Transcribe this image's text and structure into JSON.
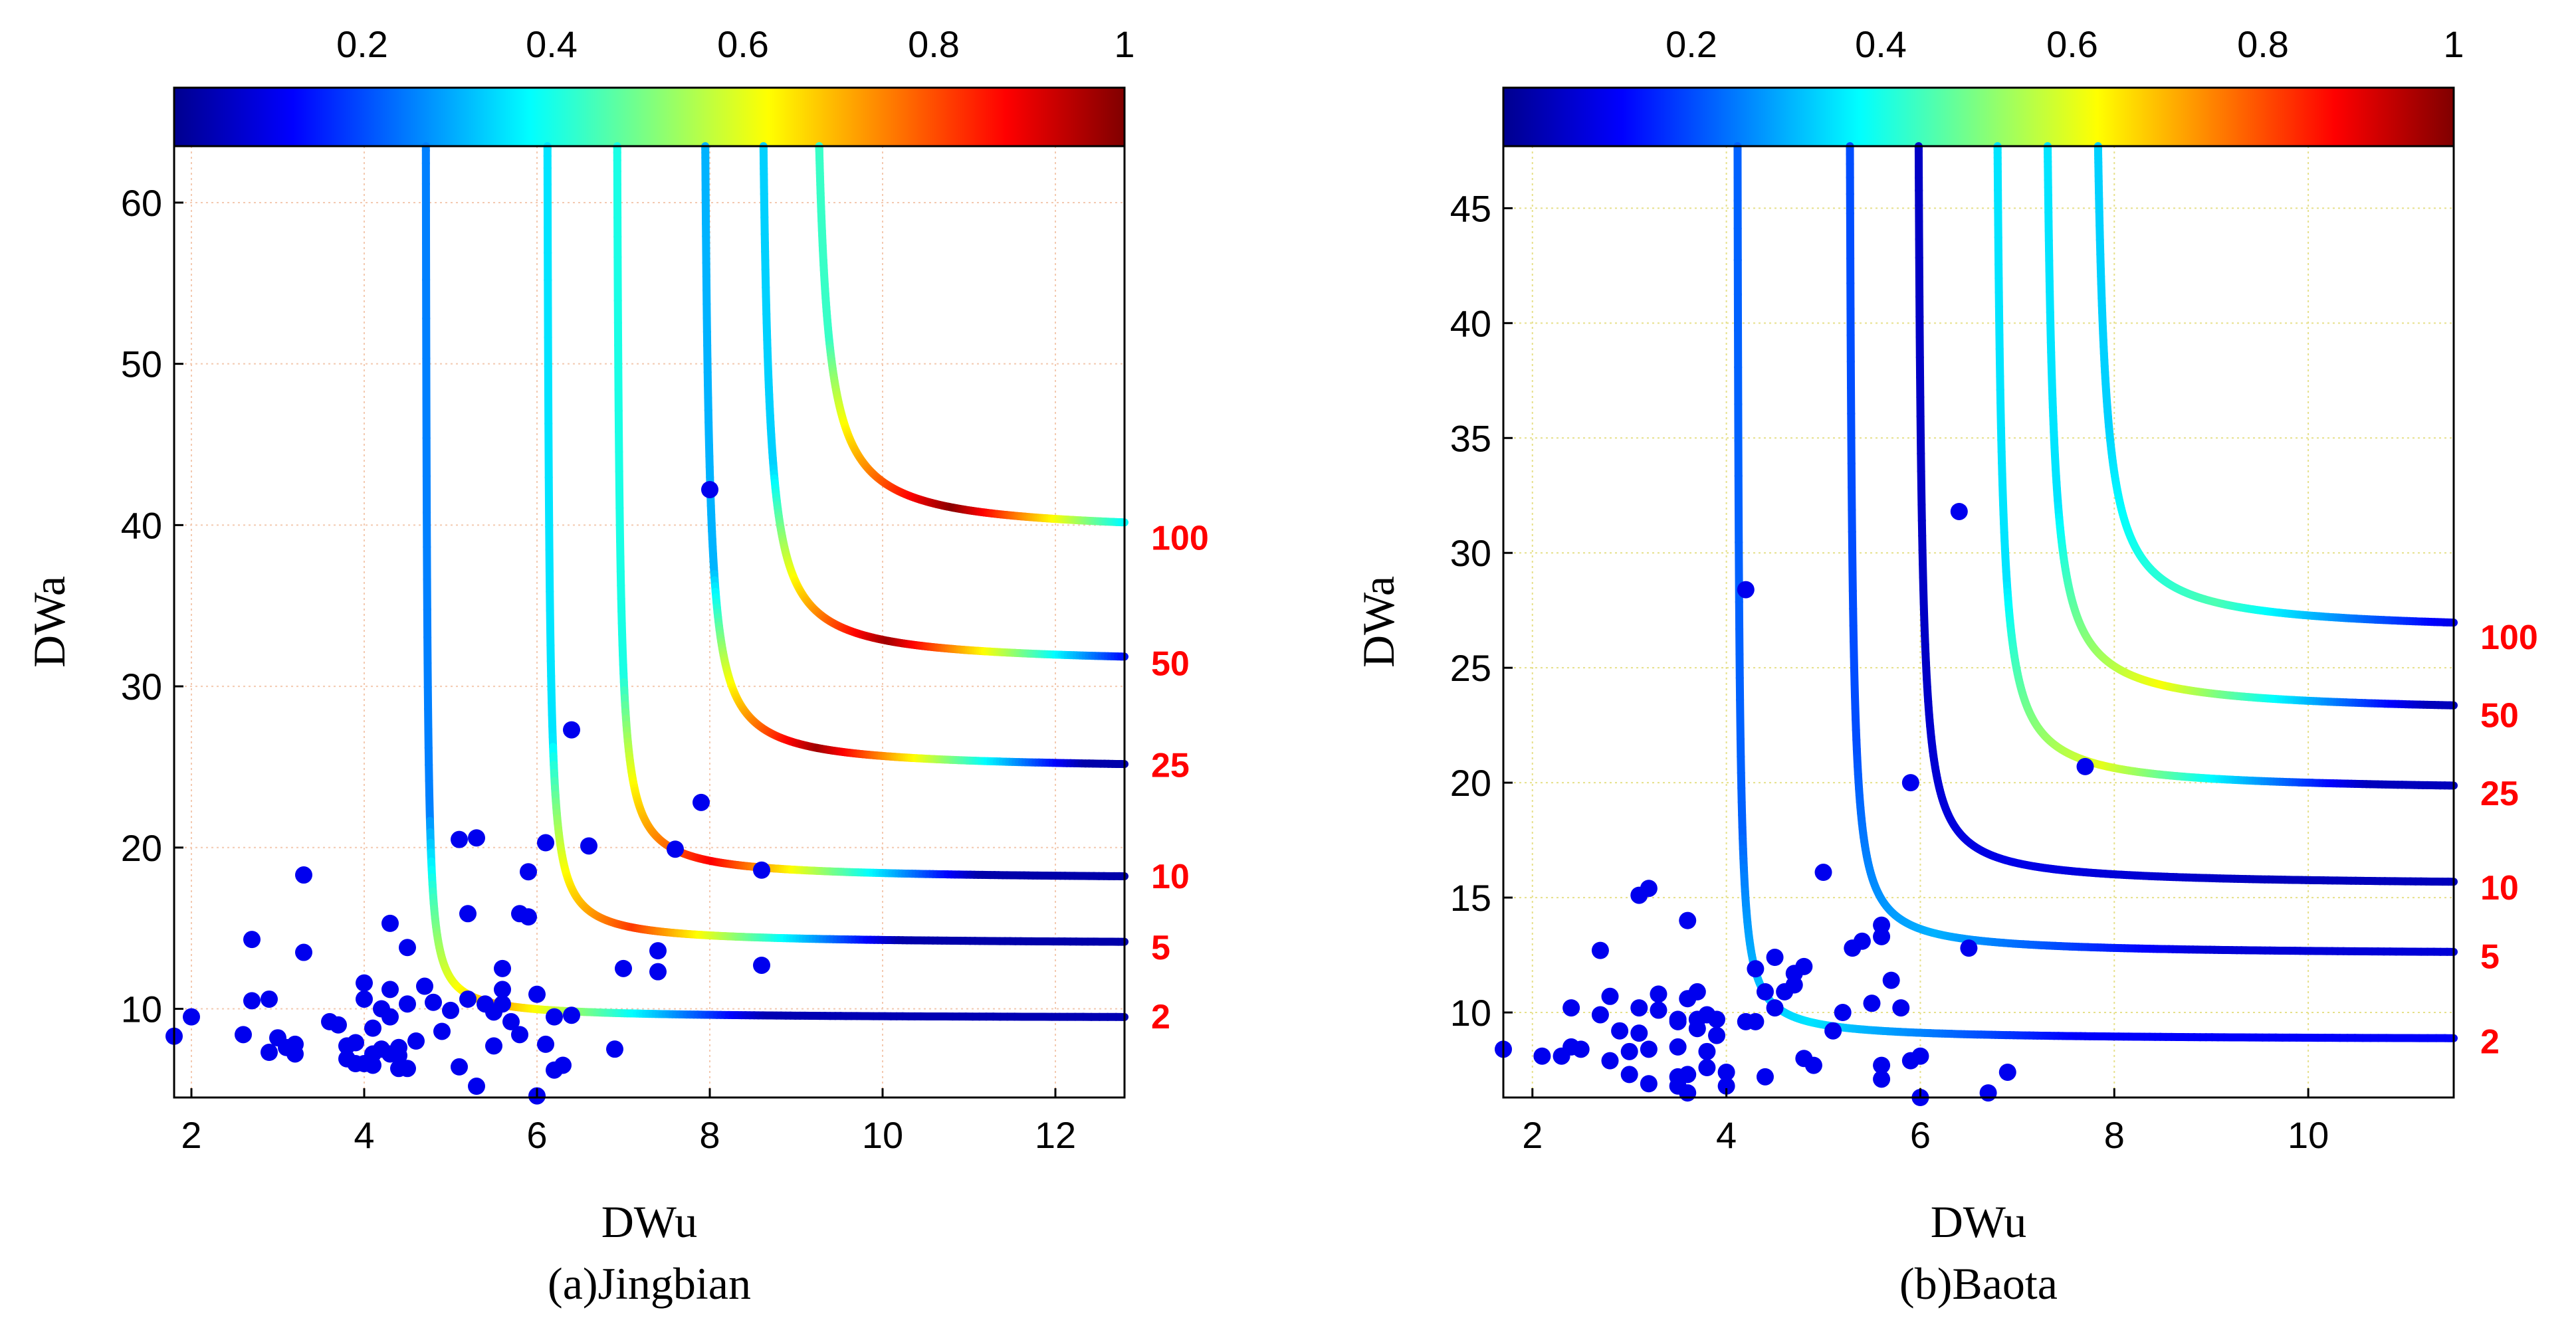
{
  "colorbar": {
    "ticks": [
      0.2,
      0.4,
      0.6,
      0.8,
      1
    ],
    "tick_labels": [
      "0.2",
      "0.4",
      "0.6",
      "0.8",
      "1"
    ],
    "colormap": "jet",
    "range": [
      0,
      1
    ],
    "stops": [
      "#00008f",
      "#0000ff",
      "#00ffff",
      "#7fff7f",
      "#ffff00",
      "#ff0000",
      "#800000"
    ]
  },
  "chart_data": [
    {
      "type": "scatter",
      "title": "(a)Jingbian",
      "xlabel": "DWu",
      "ylabel": "DWa",
      "xlim": [
        1.8,
        12.8
      ],
      "ylim": [
        4.5,
        63.5
      ],
      "xticks": [
        2,
        4,
        6,
        8,
        10,
        12
      ],
      "yticks": [
        10,
        20,
        30,
        40,
        50,
        60
      ],
      "tick_labels_x": [
        "2",
        "4",
        "6",
        "8",
        "10",
        "12"
      ],
      "tick_labels_y": [
        "10",
        "20",
        "30",
        "40",
        "50",
        "60"
      ],
      "points_color": "#0000ee",
      "points": [
        [
          1.8,
          8.3
        ],
        [
          2.0,
          9.5
        ],
        [
          2.6,
          8.4
        ],
        [
          2.7,
          14.3
        ],
        [
          2.7,
          10.5
        ],
        [
          2.9,
          10.6
        ],
        [
          2.9,
          7.3
        ],
        [
          3.0,
          8.2
        ],
        [
          3.1,
          7.6
        ],
        [
          3.2,
          7.2
        ],
        [
          3.2,
          7.8
        ],
        [
          3.3,
          13.5
        ],
        [
          3.3,
          18.3
        ],
        [
          3.6,
          9.2
        ],
        [
          3.7,
          9.0
        ],
        [
          3.8,
          7.7
        ],
        [
          3.8,
          6.9
        ],
        [
          3.9,
          6.6
        ],
        [
          3.9,
          7.9
        ],
        [
          4.0,
          11.6
        ],
        [
          4.0,
          10.6
        ],
        [
          4.0,
          6.6
        ],
        [
          4.1,
          8.8
        ],
        [
          4.1,
          7.2
        ],
        [
          4.1,
          6.5
        ],
        [
          4.2,
          7.5
        ],
        [
          4.2,
          10.0
        ],
        [
          4.3,
          11.2
        ],
        [
          4.3,
          9.5
        ],
        [
          4.3,
          15.3
        ],
        [
          4.3,
          7.2
        ],
        [
          4.4,
          7.1
        ],
        [
          4.4,
          6.3
        ],
        [
          4.4,
          7.6
        ],
        [
          4.5,
          13.8
        ],
        [
          4.5,
          6.3
        ],
        [
          4.5,
          10.3
        ],
        [
          4.6,
          8.0
        ],
        [
          4.7,
          11.4
        ],
        [
          4.8,
          10.4
        ],
        [
          4.9,
          8.6
        ],
        [
          5.0,
          9.9
        ],
        [
          5.1,
          20.5
        ],
        [
          5.1,
          6.4
        ],
        [
          5.2,
          10.6
        ],
        [
          5.2,
          15.9
        ],
        [
          5.3,
          20.6
        ],
        [
          5.3,
          5.2
        ],
        [
          5.4,
          10.3
        ],
        [
          5.5,
          7.7
        ],
        [
          5.5,
          9.8
        ],
        [
          5.6,
          11.2
        ],
        [
          5.6,
          12.5
        ],
        [
          5.6,
          10.3
        ],
        [
          5.7,
          9.2
        ],
        [
          5.8,
          15.9
        ],
        [
          5.8,
          8.4
        ],
        [
          5.9,
          18.5
        ],
        [
          5.9,
          15.7
        ],
        [
          6.0,
          4.6
        ],
        [
          6.0,
          10.9
        ],
        [
          6.1,
          20.3
        ],
        [
          6.1,
          7.8
        ],
        [
          6.2,
          6.2
        ],
        [
          6.2,
          9.5
        ],
        [
          6.3,
          6.5
        ],
        [
          6.4,
          27.3
        ],
        [
          6.4,
          9.6
        ],
        [
          6.6,
          20.1
        ],
        [
          6.9,
          7.5
        ],
        [
          7.0,
          12.5
        ],
        [
          7.4,
          12.3
        ],
        [
          7.4,
          13.6
        ],
        [
          7.6,
          19.9
        ],
        [
          7.9,
          22.8
        ],
        [
          8.0,
          42.2
        ],
        [
          8.6,
          18.6
        ],
        [
          8.6,
          12.7
        ]
      ],
      "curves": [
        {
          "label": "2",
          "a": 4.7,
          "b": 9.4,
          "k": 0.75,
          "c_lo": 0.25,
          "c_hi": 0.72,
          "c_far": 0.04
        },
        {
          "label": "5",
          "a": 6.1,
          "b": 14.0,
          "k": 1.05,
          "c_lo": 0.35,
          "c_hi": 0.82,
          "c_far": 0.03
        },
        {
          "label": "10",
          "a": 6.9,
          "b": 18.0,
          "k": 1.3,
          "c_lo": 0.4,
          "c_hi": 0.88,
          "c_far": 0.03
        },
        {
          "label": "25",
          "a": 7.9,
          "b": 24.8,
          "k": 1.85,
          "c_lo": 0.3,
          "c_hi": 0.97,
          "c_far": 0.03
        },
        {
          "label": "50",
          "a": 8.55,
          "b": 31.3,
          "k": 2.3,
          "c_lo": 0.33,
          "c_hi": 0.97,
          "c_far": 0.03
        },
        {
          "label": "100",
          "a": 9.15,
          "b": 39.4,
          "k": 2.8,
          "c_lo": 0.43,
          "c_hi": 0.99,
          "c_far": 0.03
        }
      ],
      "rp_labels": [
        "100",
        "50",
        "25",
        "10",
        "5",
        "2"
      ],
      "rp_label_y": [
        39.3,
        31.5,
        25.2,
        18.3,
        13.9,
        9.6
      ]
    },
    {
      "type": "scatter",
      "title": "(b)Baota",
      "xlabel": "DWu",
      "ylabel": "DWa",
      "xlim": [
        1.7,
        11.5
      ],
      "ylim": [
        6.3,
        47.7
      ],
      "xticks": [
        2,
        4,
        6,
        8,
        10
      ],
      "yticks": [
        10,
        15,
        20,
        25,
        30,
        35,
        40,
        45
      ],
      "tick_labels_x": [
        "2",
        "4",
        "6",
        "8",
        "10"
      ],
      "tick_labels_y": [
        "10",
        "15",
        "20",
        "25",
        "30",
        "35",
        "40",
        "45"
      ],
      "points_color": "#0000ee",
      "points": [
        [
          1.7,
          8.4
        ],
        [
          2.1,
          8.1
        ],
        [
          2.3,
          8.1
        ],
        [
          2.4,
          8.5
        ],
        [
          2.4,
          10.2
        ],
        [
          2.5,
          8.4
        ],
        [
          2.7,
          12.7
        ],
        [
          2.7,
          9.9
        ],
        [
          2.8,
          10.7
        ],
        [
          2.8,
          7.9
        ],
        [
          2.9,
          9.2
        ],
        [
          3.0,
          8.3
        ],
        [
          3.0,
          7.3
        ],
        [
          3.1,
          9.1
        ],
        [
          3.1,
          15.1
        ],
        [
          3.1,
          10.2
        ],
        [
          3.2,
          15.4
        ],
        [
          3.2,
          8.4
        ],
        [
          3.2,
          6.9
        ],
        [
          3.3,
          10.8
        ],
        [
          3.3,
          10.1
        ],
        [
          3.5,
          9.6
        ],
        [
          3.5,
          9.7
        ],
        [
          3.5,
          8.5
        ],
        [
          3.5,
          7.2
        ],
        [
          3.5,
          6.8
        ],
        [
          3.6,
          7.3
        ],
        [
          3.6,
          6.5
        ],
        [
          3.6,
          10.6
        ],
        [
          3.6,
          14.0
        ],
        [
          3.7,
          10.9
        ],
        [
          3.7,
          9.7
        ],
        [
          3.7,
          9.3
        ],
        [
          3.8,
          9.9
        ],
        [
          3.8,
          8.3
        ],
        [
          3.8,
          7.6
        ],
        [
          3.9,
          9.7
        ],
        [
          3.9,
          9.0
        ],
        [
          4.0,
          7.4
        ],
        [
          4.0,
          6.8
        ],
        [
          4.2,
          28.4
        ],
        [
          4.2,
          9.6
        ],
        [
          4.3,
          11.9
        ],
        [
          4.3,
          9.6
        ],
        [
          4.4,
          7.2
        ],
        [
          4.4,
          10.9
        ],
        [
          4.5,
          12.4
        ],
        [
          4.5,
          10.2
        ],
        [
          4.6,
          10.9
        ],
        [
          4.7,
          11.7
        ],
        [
          4.7,
          11.2
        ],
        [
          4.8,
          8.0
        ],
        [
          4.8,
          12.0
        ],
        [
          4.9,
          7.7
        ],
        [
          5.0,
          16.1
        ],
        [
          5.1,
          9.2
        ],
        [
          5.2,
          10.0
        ],
        [
          5.3,
          12.8
        ],
        [
          5.4,
          13.1
        ],
        [
          5.5,
          10.4
        ],
        [
          5.6,
          13.8
        ],
        [
          5.6,
          7.7
        ],
        [
          5.6,
          7.1
        ],
        [
          5.6,
          13.3
        ],
        [
          5.7,
          11.4
        ],
        [
          5.8,
          10.2
        ],
        [
          5.9,
          20.0
        ],
        [
          5.9,
          7.9
        ],
        [
          6.0,
          8.1
        ],
        [
          6.0,
          6.3
        ],
        [
          6.4,
          31.8
        ],
        [
          6.5,
          12.8
        ],
        [
          6.7,
          6.5
        ],
        [
          6.9,
          7.4
        ],
        [
          7.7,
          20.7
        ]
      ],
      "curves": [
        {
          "label": "2",
          "a": 4.1,
          "b": 8.8,
          "k": 0.6,
          "c_lo": 0.22,
          "c_hi": 0.35,
          "c_far": 0.12
        },
        {
          "label": "5",
          "a": 5.25,
          "b": 12.5,
          "k": 0.85,
          "c_lo": 0.2,
          "c_hi": 0.3,
          "c_far": 0.08
        },
        {
          "label": "10",
          "a": 5.95,
          "b": 15.5,
          "k": 1.05,
          "c_lo": 0.06,
          "c_hi": 0.1,
          "c_far": 0.05
        },
        {
          "label": "25",
          "a": 6.75,
          "b": 19.6,
          "k": 1.3,
          "c_lo": 0.35,
          "c_hi": 0.6,
          "c_far": 0.05
        },
        {
          "label": "50",
          "a": 7.25,
          "b": 23.0,
          "k": 1.55,
          "c_lo": 0.35,
          "c_hi": 0.62,
          "c_far": 0.05
        },
        {
          "label": "100",
          "a": 7.75,
          "b": 26.5,
          "k": 1.75,
          "c_lo": 0.33,
          "c_hi": 0.45,
          "c_far": 0.05
        }
      ],
      "rp_labels": [
        "100",
        "50",
        "25",
        "10",
        "5",
        "2"
      ],
      "rp_label_y": [
        26.4,
        23.0,
        19.6,
        15.5,
        12.5,
        8.8
      ]
    }
  ]
}
